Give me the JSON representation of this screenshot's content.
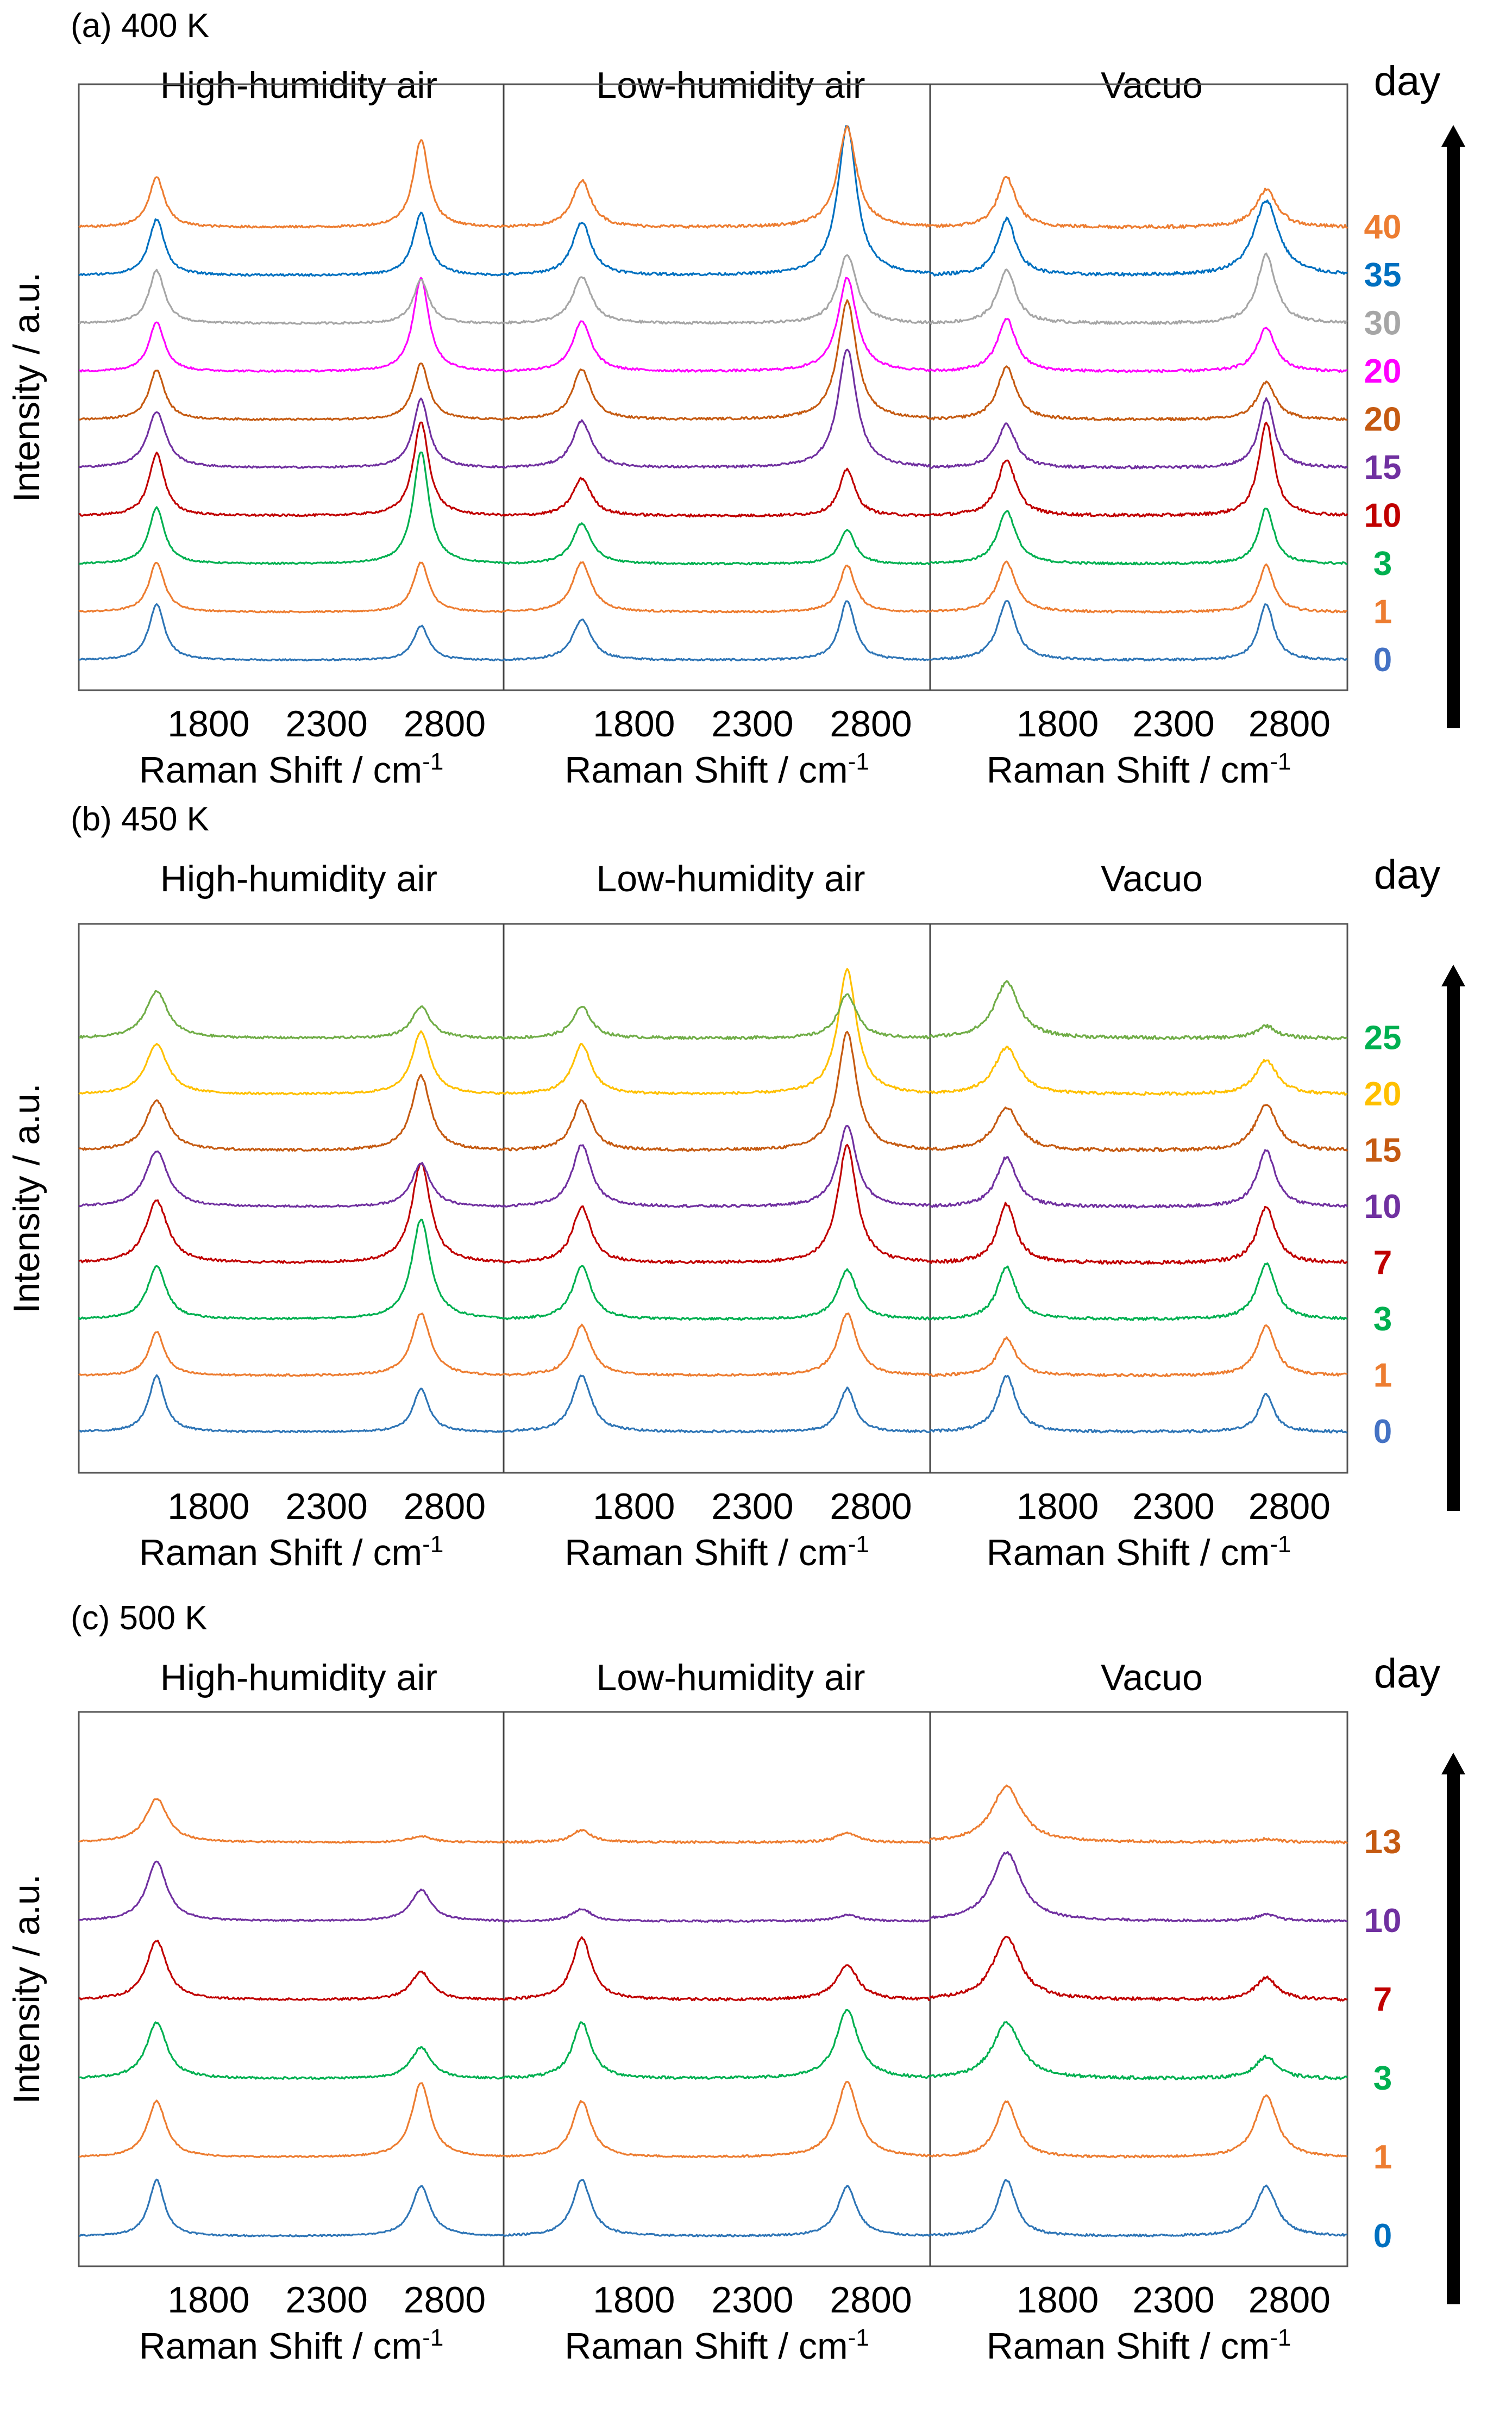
{
  "chart_data": [
    {
      "type": "line",
      "title": "(a) 400 K",
      "conditions": [
        "High-humidity air",
        "Low-humidity air",
        "Vacuo"
      ],
      "xlabel": "Raman Shift / cm",
      "xlabel_sup": "-1",
      "ylabel": "Intensity / a.u.",
      "xlim": [
        1250,
        3050
      ],
      "xticks": [
        "1800",
        "2300",
        "2800"
      ],
      "day_label": "day",
      "series": [
        {
          "name": "0",
          "color": "#4472C4",
          "trace_color": "#2E75B6",
          "noise": 0.1,
          "peaks": [
            [
              0.9,
              0.65,
              0.95
            ],
            [
              0.55,
              0.95,
              0.9
            ],
            [
              0.55,
              0.55,
              0.85
            ]
          ],
          "widths": [
            [
              1,
              1.2,
              1.2
            ],
            [
              1,
              1,
              1
            ]
          ]
        },
        {
          "name": "1",
          "color": "#ED7D31",
          "trace_color": "#ED7D31",
          "noise": 0.1,
          "peaks": [
            [
              0.8,
              0.8,
              0.8
            ],
            [
              0.8,
              0.75,
              0.75
            ],
            [
              0.8,
              0.85,
              0.7
            ]
          ],
          "widths": [
            [
              1,
              1.2,
              1.2
            ],
            [
              1,
              1,
              1
            ]
          ]
        },
        {
          "name": "3",
          "color": "#00B050",
          "trace_color": "#00B050",
          "noise": 0.1,
          "peaks": [
            [
              0.9,
              0.65,
              0.85
            ],
            [
              1.8,
              0.55,
              0.9
            ],
            [
              0.55,
              0.55,
              0.65
            ]
          ],
          "widths": [
            [
              1,
              1.2,
              1.2
            ],
            [
              1,
              1,
              1
            ]
          ]
        },
        {
          "name": "10",
          "color": "#C00000",
          "trace_color": "#C00000",
          "noise": 0.14,
          "peaks": [
            [
              1.0,
              0.6,
              0.9
            ],
            [
              1.5,
              0.75,
              1.5
            ],
            [
              0.45,
              0.35,
              0.35
            ]
          ],
          "widths": [
            [
              1,
              1.2,
              1.2
            ],
            [
              1,
              1,
              1
            ]
          ]
        },
        {
          "name": "15",
          "color": "#7030A0",
          "trace_color": "#7030A0",
          "noise": 0.12,
          "peaks": [
            [
              0.9,
              0.75,
              0.7
            ],
            [
              1.1,
              1.9,
              1.1
            ],
            [
              0.5,
              0.45,
              0.4
            ]
          ],
          "widths": [
            [
              1.2,
              1.2,
              1.2
            ],
            [
              1,
              1.2,
              1
            ]
          ]
        },
        {
          "name": "20",
          "color": "#C55A11",
          "trace_color": "#C55A11",
          "noise": 0.12,
          "peaks": [
            [
              0.8,
              0.8,
              0.85
            ],
            [
              0.9,
              1.9,
              0.6
            ],
            [
              0.6,
              0.55,
              0.5
            ]
          ],
          "widths": [
            [
              1,
              1.2,
              1.2
            ],
            [
              1,
              1.2,
              1.2
            ]
          ]
        },
        {
          "name": "20",
          "color": "#FF00FF",
          "trace_color": "#FF00FF",
          "noise": 0.12,
          "peaks": [
            [
              0.8,
              0.8,
              0.85
            ],
            [
              1.5,
              1.5,
              0.7
            ],
            [
              0.6,
              0.6,
              0.5
            ]
          ],
          "widths": [
            [
              1,
              1.2,
              1.2
            ],
            [
              1,
              1.2,
              1.2
            ]
          ]
        },
        {
          "name": "30",
          "color": "#A6A6A6",
          "trace_color": "#A6A6A6",
          "noise": 0.13,
          "peaks": [
            [
              0.85,
              0.75,
              0.85
            ],
            [
              0.7,
              1.1,
              1.1
            ],
            [
              0.55,
              0.6,
              0.5
            ]
          ],
          "widths": [
            [
              1,
              1.2,
              1.2
            ],
            [
              1,
              1.2,
              1.2
            ]
          ]
        },
        {
          "name": "35",
          "color": "#0070C0",
          "trace_color": "#0070C0",
          "noise": 0.14,
          "peaks": [
            [
              0.9,
              0.85,
              0.9
            ],
            [
              1.0,
              2.4,
              1.2
            ],
            [
              0.6,
              0.55,
              0.45
            ]
          ],
          "widths": [
            [
              1,
              1.2,
              1.2
            ],
            [
              1,
              1.2,
              1.6
            ]
          ]
        },
        {
          "name": "40",
          "color": "#ED7D31",
          "trace_color": "#ED7D31",
          "noise": 0.15,
          "peaks": [
            [
              0.8,
              0.75,
              0.8
            ],
            [
              1.4,
              1.6,
              0.6
            ],
            [
              0.5,
              0.45,
              0.4
            ]
          ],
          "widths": [
            [
              1,
              1.2,
              1.2
            ],
            [
              1,
              1.2,
              1.4
            ]
          ]
        }
      ]
    },
    {
      "type": "line",
      "title": "(b) 450 K",
      "conditions": [
        "High-humidity air",
        "Low-humidity air",
        "Vacuo"
      ],
      "xlabel": "Raman Shift / cm",
      "xlabel_sup": "-1",
      "ylabel": "Intensity / a.u.",
      "xlim": [
        1250,
        3050
      ],
      "xticks": [
        "1800",
        "2300",
        "2800"
      ],
      "day_label": "day",
      "series": [
        {
          "name": "0",
          "color": "#4472C4",
          "trace_color": "#2E75B6",
          "noise": 0.12,
          "peaks": [
            [
              0.9,
              0.9,
              0.9
            ],
            [
              0.7,
              0.7,
              0.6
            ],
            [
              0.8,
              0.7,
              0.5
            ]
          ],
          "widths": [
            [
              1,
              1.2,
              1.2
            ],
            [
              1,
              1,
              1
            ]
          ]
        },
        {
          "name": "1",
          "color": "#ED7D31",
          "trace_color": "#ED7D31",
          "noise": 0.12,
          "peaks": [
            [
              0.7,
              0.8,
              0.6
            ],
            [
              1.0,
              1.0,
              0.8
            ],
            [
              0.5,
              0.5,
              0.35
            ]
          ],
          "widths": [
            [
              1,
              1.2,
              1.2
            ],
            [
              1.2,
              1.2,
              1.2
            ]
          ]
        },
        {
          "name": "3",
          "color": "#00B050",
          "trace_color": "#00B050",
          "noise": 0.12,
          "peaks": [
            [
              0.85,
              0.85,
              0.85
            ],
            [
              1.6,
              0.8,
              0.9
            ],
            [
              1.1,
              0.9,
              0.55
            ]
          ],
          "widths": [
            [
              1.2,
              1.2,
              1.2
            ],
            [
              1.2,
              1.2,
              1.2
            ]
          ]
        },
        {
          "name": "7",
          "color": "#C00000",
          "trace_color": "#C00000",
          "noise": 0.16,
          "peaks": [
            [
              1.0,
              0.9,
              0.95
            ],
            [
              1.6,
              1.9,
              0.9
            ],
            [
              0.6,
              0.5,
              0.5
            ]
          ],
          "widths": [
            [
              1.4,
              1.2,
              1.2
            ],
            [
              1.2,
              1.2,
              1.2
            ]
          ]
        },
        {
          "name": "10",
          "color": "#7030A0",
          "trace_color": "#7030A0",
          "noise": 0.13,
          "peaks": [
            [
              0.9,
              1.0,
              0.8
            ],
            [
              0.7,
              1.3,
              0.9
            ],
            [
              0.5,
              0.5,
              0.4
            ]
          ],
          "widths": [
            [
              1.4,
              1.2,
              1.3
            ],
            [
              1.2,
              1.2,
              1.2
            ]
          ]
        },
        {
          "name": "15",
          "color": "#C55A11",
          "trace_color": "#C55A11",
          "noise": 0.15,
          "peaks": [
            [
              0.8,
              0.8,
              0.7
            ],
            [
              1.2,
              1.9,
              0.75
            ],
            [
              0.45,
              0.45,
              0.35
            ]
          ],
          "widths": [
            [
              1.4,
              1.2,
              1.6
            ],
            [
              1.2,
              1.2,
              1.4
            ]
          ]
        },
        {
          "name": "20",
          "color": "#FFC000",
          "trace_color": "#FFC000",
          "noise": 0.13,
          "peaks": [
            [
              0.8,
              0.8,
              0.75
            ],
            [
              1.0,
              2.0,
              0.55
            ],
            [
              0.5,
              0.45,
              0.35
            ]
          ],
          "widths": [
            [
              1.4,
              1.2,
              1.6
            ],
            [
              1.2,
              1.2,
              1.4
            ]
          ]
        },
        {
          "name": "25",
          "color": "#00B050",
          "trace_color": "#70AD47",
          "noise": 0.15,
          "peaks": [
            [
              0.75,
              0.5,
              0.9
            ],
            [
              0.5,
              0.7,
              0.2
            ],
            [
              0.4,
              0.35,
              0.3
            ]
          ],
          "widths": [
            [
              1.4,
              1.2,
              1.6
            ],
            [
              1.2,
              1.2,
              1.2
            ]
          ]
        }
      ]
    },
    {
      "type": "line",
      "title": "(c) 500 K",
      "conditions": [
        "High-humidity air",
        "Low-humidity air",
        "Vacuo"
      ],
      "xlabel": "Raman Shift / cm",
      "xlabel_sup": "-1",
      "ylabel": "Intensity / a.u.",
      "xlim": [
        1250,
        3050
      ],
      "xticks": [
        "1800",
        "2300",
        "2800"
      ],
      "day_label": "day",
      "series": [
        {
          "name": "0",
          "color": "#0070C0",
          "trace_color": "#2E75B6",
          "noise": 0.1,
          "peaks": [
            [
              0.9,
              0.9,
              0.9
            ],
            [
              0.8,
              0.8,
              0.8
            ],
            [
              0.8,
              0.8,
              0.8
            ]
          ],
          "widths": [
            [
              1,
              1.2,
              1.2
            ],
            [
              1.2,
              1.2,
              1.4
            ]
          ]
        },
        {
          "name": "1",
          "color": "#ED7D31",
          "trace_color": "#ED7D31",
          "noise": 0.1,
          "peaks": [
            [
              0.9,
              0.9,
              0.9
            ],
            [
              1.2,
              1.2,
              1.0
            ],
            [
              0.8,
              0.8,
              0.7
            ]
          ],
          "widths": [
            [
              1.2,
              1.2,
              1.3
            ],
            [
              1.2,
              1.4,
              1.4
            ]
          ]
        },
        {
          "name": "3",
          "color": "#00B050",
          "trace_color": "#00B050",
          "noise": 0.14,
          "peaks": [
            [
              0.9,
              0.9,
              0.9
            ],
            [
              0.5,
              1.1,
              0.35
            ],
            [
              0.6,
              0.5,
              0.3
            ]
          ],
          "widths": [
            [
              1.3,
              1.2,
              1.8
            ],
            [
              1.3,
              1.4,
              1.4
            ]
          ]
        },
        {
          "name": "7",
          "color": "#C00000",
          "trace_color": "#C00000",
          "noise": 0.14,
          "peaks": [
            [
              0.95,
              1.0,
              1.0
            ],
            [
              0.45,
              0.55,
              0.35
            ],
            [
              0.5,
              0.45,
              0.3
            ]
          ],
          "widths": [
            [
              1.3,
              1.2,
              1.8
            ],
            [
              1.3,
              1.4,
              1.4
            ]
          ]
        },
        {
          "name": "10",
          "color": "#7030A0",
          "trace_color": "#7030A0",
          "noise": 0.1,
          "peaks": [
            [
              0.95,
              0.2,
              1.1
            ],
            [
              0.5,
              0.1,
              0.1
            ],
            [
              0.35,
              0.3,
              0.1
            ]
          ],
          "widths": [
            [
              1.3,
              1.2,
              1.9
            ],
            [
              1.3,
              1.4,
              1.4
            ]
          ]
        },
        {
          "name": "13",
          "color": "#C55A11",
          "trace_color": "#ED7D31",
          "noise": 0.12,
          "peaks": [
            [
              0.7,
              0.2,
              0.9
            ],
            [
              0.1,
              0.15,
              0.05
            ],
            [
              0.2,
              0.1,
              0.05
            ]
          ],
          "widths": [
            [
              1.4,
              1.2,
              1.9
            ],
            [
              1.3,
              1.4,
              1.4
            ]
          ]
        }
      ]
    }
  ]
}
